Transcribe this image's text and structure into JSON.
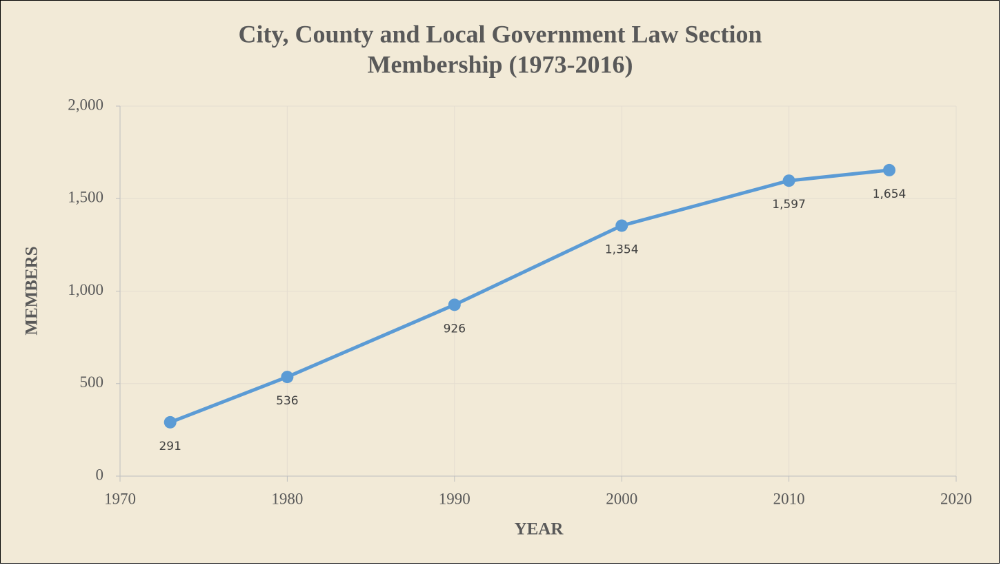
{
  "chart_data": {
    "type": "line",
    "title": "City, County and Local Government Law Section",
    "subtitle": "Membership (1973-2016)",
    "x_label": "YEAR",
    "y_label": "MEMBERS",
    "x": [
      1973,
      1980,
      1990,
      2000,
      2010,
      2016
    ],
    "series": [
      {
        "name": "Members",
        "color": "#5b9bd5",
        "values": [
          291,
          536,
          926,
          1354,
          1597,
          1654
        ],
        "value_labels": [
          "291",
          "536",
          "926",
          "1,354",
          "1,597",
          "1,654"
        ]
      }
    ],
    "xlim": [
      1970,
      2020
    ],
    "xticks": [
      1970,
      1980,
      1990,
      2000,
      2010,
      2020
    ],
    "ylim": [
      0,
      2000
    ],
    "yticks": [
      0,
      500,
      {
        "value": 1000,
        "label": "1,000"
      },
      {
        "value": 1500,
        "label": "1,500"
      },
      {
        "value": 2000,
        "label": "2,000"
      }
    ],
    "grid": true
  }
}
